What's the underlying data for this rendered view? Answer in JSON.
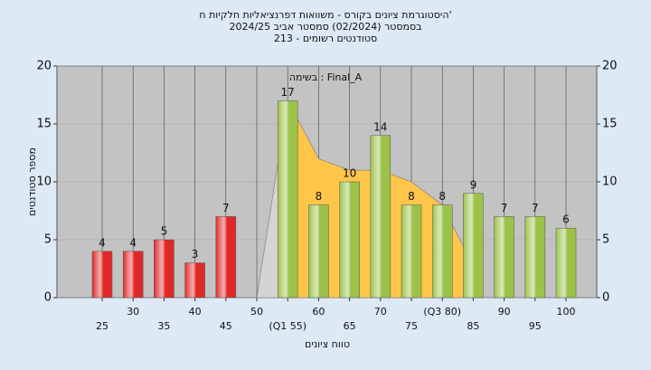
{
  "chart_data": {
    "type": "bar",
    "title": "היסטוגרמת ציונים בקורס - משוואות דפרנציאליות חלקיות ח'",
    "subtitle": "בסמסטר  (02/2024)  סמסטר אביב 2024/25",
    "subtitle2": "סטודנטים רשומים - 213",
    "annotation": "בשימה : Final_A",
    "y_label": "מספר סטודנטים",
    "x_label": "טווח ציונים",
    "categories": [
      "25",
      "30",
      "35",
      "40",
      "45",
      "50",
      "(Q1 55)",
      "60",
      "65",
      "70",
      "75",
      "(Q3 80)",
      "85",
      "90",
      "95",
      "100"
    ],
    "values": [
      4,
      4,
      5,
      3,
      7,
      null,
      17,
      8,
      10,
      14,
      8,
      8,
      9,
      7,
      7,
      6
    ],
    "colors": [
      "#e02828",
      "#e02828",
      "#e02828",
      "#e02828",
      "#e02828",
      "#e02828",
      "#9cc24a",
      "#9cc24a",
      "#9cc24a",
      "#9cc24a",
      "#9cc24a",
      "#9cc24a",
      "#9cc24a",
      "#9cc24a",
      "#9cc24a",
      "#9cc24a"
    ],
    "areas": [
      {
        "color": "#d4d4d4",
        "values": [
          null,
          null,
          null,
          null,
          null,
          0,
          17,
          null,
          null,
          null,
          null,
          null,
          null,
          null,
          null,
          null
        ]
      },
      {
        "color": "#ffc64a",
        "values": [
          null,
          null,
          null,
          null,
          null,
          null,
          17,
          12,
          11,
          11,
          10,
          8,
          2.7,
          null,
          null,
          null
        ]
      }
    ],
    "ylim": [
      0,
      20
    ],
    "yticks": [
      0,
      5,
      10,
      15,
      20
    ],
    "grid": true
  }
}
